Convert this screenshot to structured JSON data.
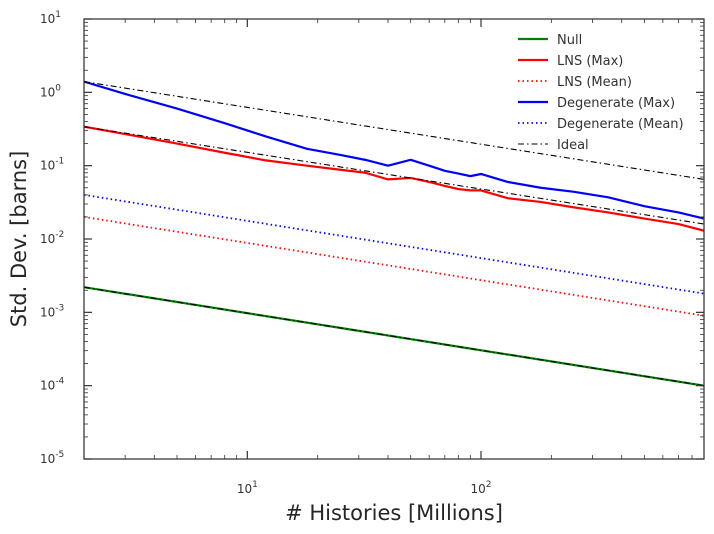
{
  "chart_data": {
    "type": "line",
    "xlabel": "# Histories [Millions]",
    "ylabel": "Std. Dev. [barns]",
    "xscale": "log",
    "yscale": "log",
    "xlim": [
      2,
      900
    ],
    "ylim": [
      1e-05,
      10
    ],
    "x_ticks": [
      {
        "value": 10,
        "base": "10",
        "exp": "1"
      },
      {
        "value": 100,
        "base": "10",
        "exp": "2"
      }
    ],
    "y_ticks": [
      {
        "value": 10,
        "base": "10",
        "exp": "1"
      },
      {
        "value": 1,
        "base": "10",
        "exp": "0"
      },
      {
        "value": 0.1,
        "base": "10",
        "exp": "-1"
      },
      {
        "value": 0.01,
        "base": "10",
        "exp": "-2"
      },
      {
        "value": 0.001,
        "base": "10",
        "exp": "-3"
      },
      {
        "value": 0.0001,
        "base": "10",
        "exp": "-4"
      },
      {
        "value": 1e-05,
        "base": "10",
        "exp": "-5"
      }
    ],
    "grid": false,
    "legend_position": "top-right",
    "series": [
      {
        "name": "Null",
        "color": "#008000",
        "style": "solid",
        "x": [
          2,
          900
        ],
        "y": [
          0.0022,
          0.0001
        ]
      },
      {
        "name": "LNS (Max)",
        "color": "#ff0000",
        "style": "solid",
        "x": [
          2,
          3,
          5,
          8,
          12,
          18,
          25,
          32,
          40,
          50,
          60,
          70,
          80,
          90,
          100,
          130,
          180,
          250,
          350,
          500,
          700,
          900
        ],
        "y": [
          0.34,
          0.27,
          0.2,
          0.15,
          0.118,
          0.1,
          0.088,
          0.08,
          0.065,
          0.068,
          0.06,
          0.053,
          0.048,
          0.046,
          0.046,
          0.036,
          0.032,
          0.027,
          0.023,
          0.019,
          0.016,
          0.013
        ]
      },
      {
        "name": "LNS (Mean)",
        "color": "#ff0000",
        "style": "dotted",
        "x": [
          2,
          900
        ],
        "y": [
          0.02,
          0.0009
        ]
      },
      {
        "name": "Degenerate (Max)",
        "color": "#0000ff",
        "style": "solid",
        "x": [
          2,
          3,
          5,
          8,
          12,
          18,
          25,
          32,
          40,
          50,
          60,
          70,
          80,
          90,
          100,
          130,
          180,
          250,
          350,
          500,
          700,
          900
        ],
        "y": [
          1.4,
          0.95,
          0.6,
          0.38,
          0.25,
          0.17,
          0.14,
          0.12,
          0.1,
          0.12,
          0.1,
          0.085,
          0.078,
          0.072,
          0.077,
          0.06,
          0.05,
          0.044,
          0.037,
          0.028,
          0.023,
          0.019
        ]
      },
      {
        "name": "Degenerate (Mean)",
        "color": "#0000ff",
        "style": "dotted",
        "x": [
          2,
          900
        ],
        "y": [
          0.04,
          0.0018
        ]
      },
      {
        "name": "Ideal",
        "color": "#000000",
        "style": "dashdot",
        "x": [
          2,
          900
        ],
        "y": [
          1.4,
          0.065
        ]
      },
      {
        "name": "",
        "color": "#000000",
        "style": "dashdot",
        "in_legend": false,
        "x": [
          2,
          900
        ],
        "y": [
          0.34,
          0.016
        ]
      },
      {
        "name": "",
        "color": "#000000",
        "style": "dashdot",
        "in_legend": false,
        "x": [
          2,
          900
        ],
        "y": [
          0.0022,
          0.0001
        ]
      }
    ]
  }
}
